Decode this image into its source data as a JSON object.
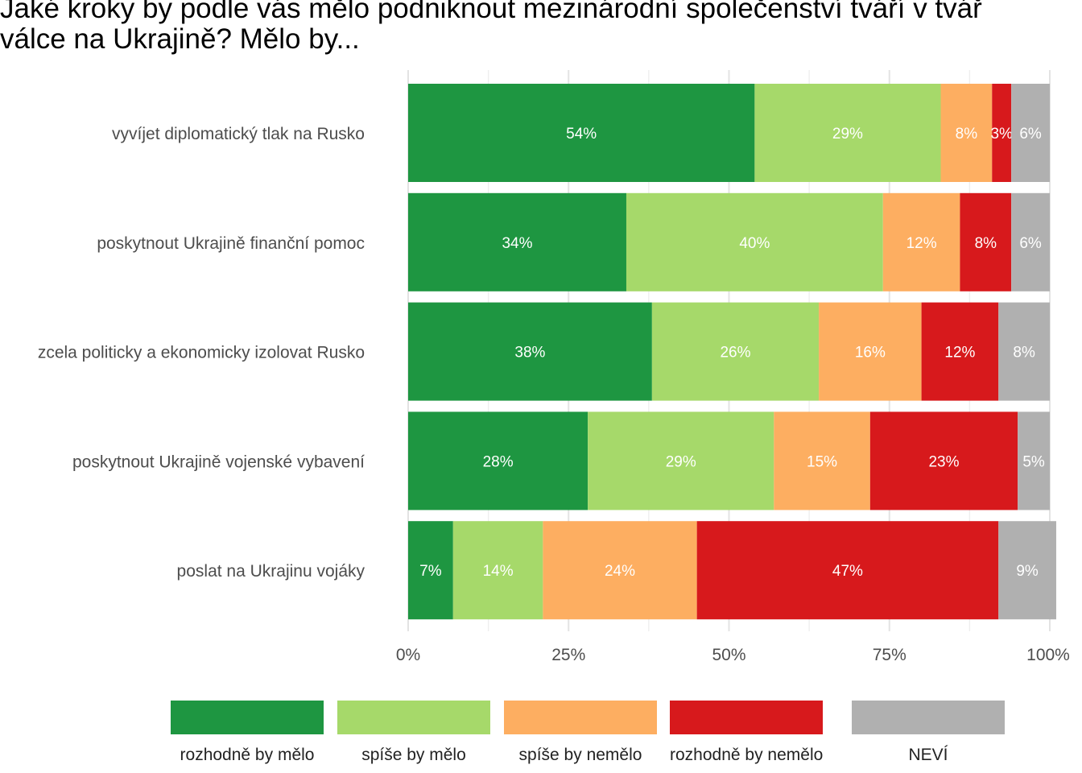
{
  "chart_data": {
    "type": "bar",
    "orientation": "horizontal",
    "stacked": "percent",
    "title": "Jaké kroky by podle vás mělo podniknout mezinárodní společenství tváří v tvář\nválce na Ukrajině? Mělo by...",
    "categories": [
      "vyvíjet diplomatický tlak na Rusko",
      "poskytnout Ukrajině finanční pomoc",
      "zcela politicky a ekonomicky izolovat Rusko",
      "poskytnout Ukrajině vojenské vybavení",
      "poslat na Ukrajinu vojáky"
    ],
    "series": [
      {
        "name": "rozhodně by mělo",
        "color": "#1e9641",
        "values": [
          54,
          34,
          38,
          28,
          7
        ]
      },
      {
        "name": "spíše by mělo",
        "color": "#a6d96a",
        "values": [
          29,
          40,
          26,
          29,
          14
        ]
      },
      {
        "name": "spíše by nemělo",
        "color": "#fdae61",
        "values": [
          8,
          12,
          16,
          15,
          24
        ]
      },
      {
        "name": "rozhodně by nemělo",
        "color": "#d7191c",
        "values": [
          3,
          8,
          12,
          23,
          47
        ]
      },
      {
        "name": "NEVÍ",
        "color": "#b0b0b0",
        "values": [
          6,
          6,
          8,
          5,
          9
        ]
      }
    ],
    "xlim": [
      0,
      100
    ],
    "x_ticks": [
      "0%",
      "25%",
      "50%",
      "75%",
      "100%"
    ],
    "grid": true,
    "legend_position": "bottom",
    "value_label_suffix": "%"
  }
}
